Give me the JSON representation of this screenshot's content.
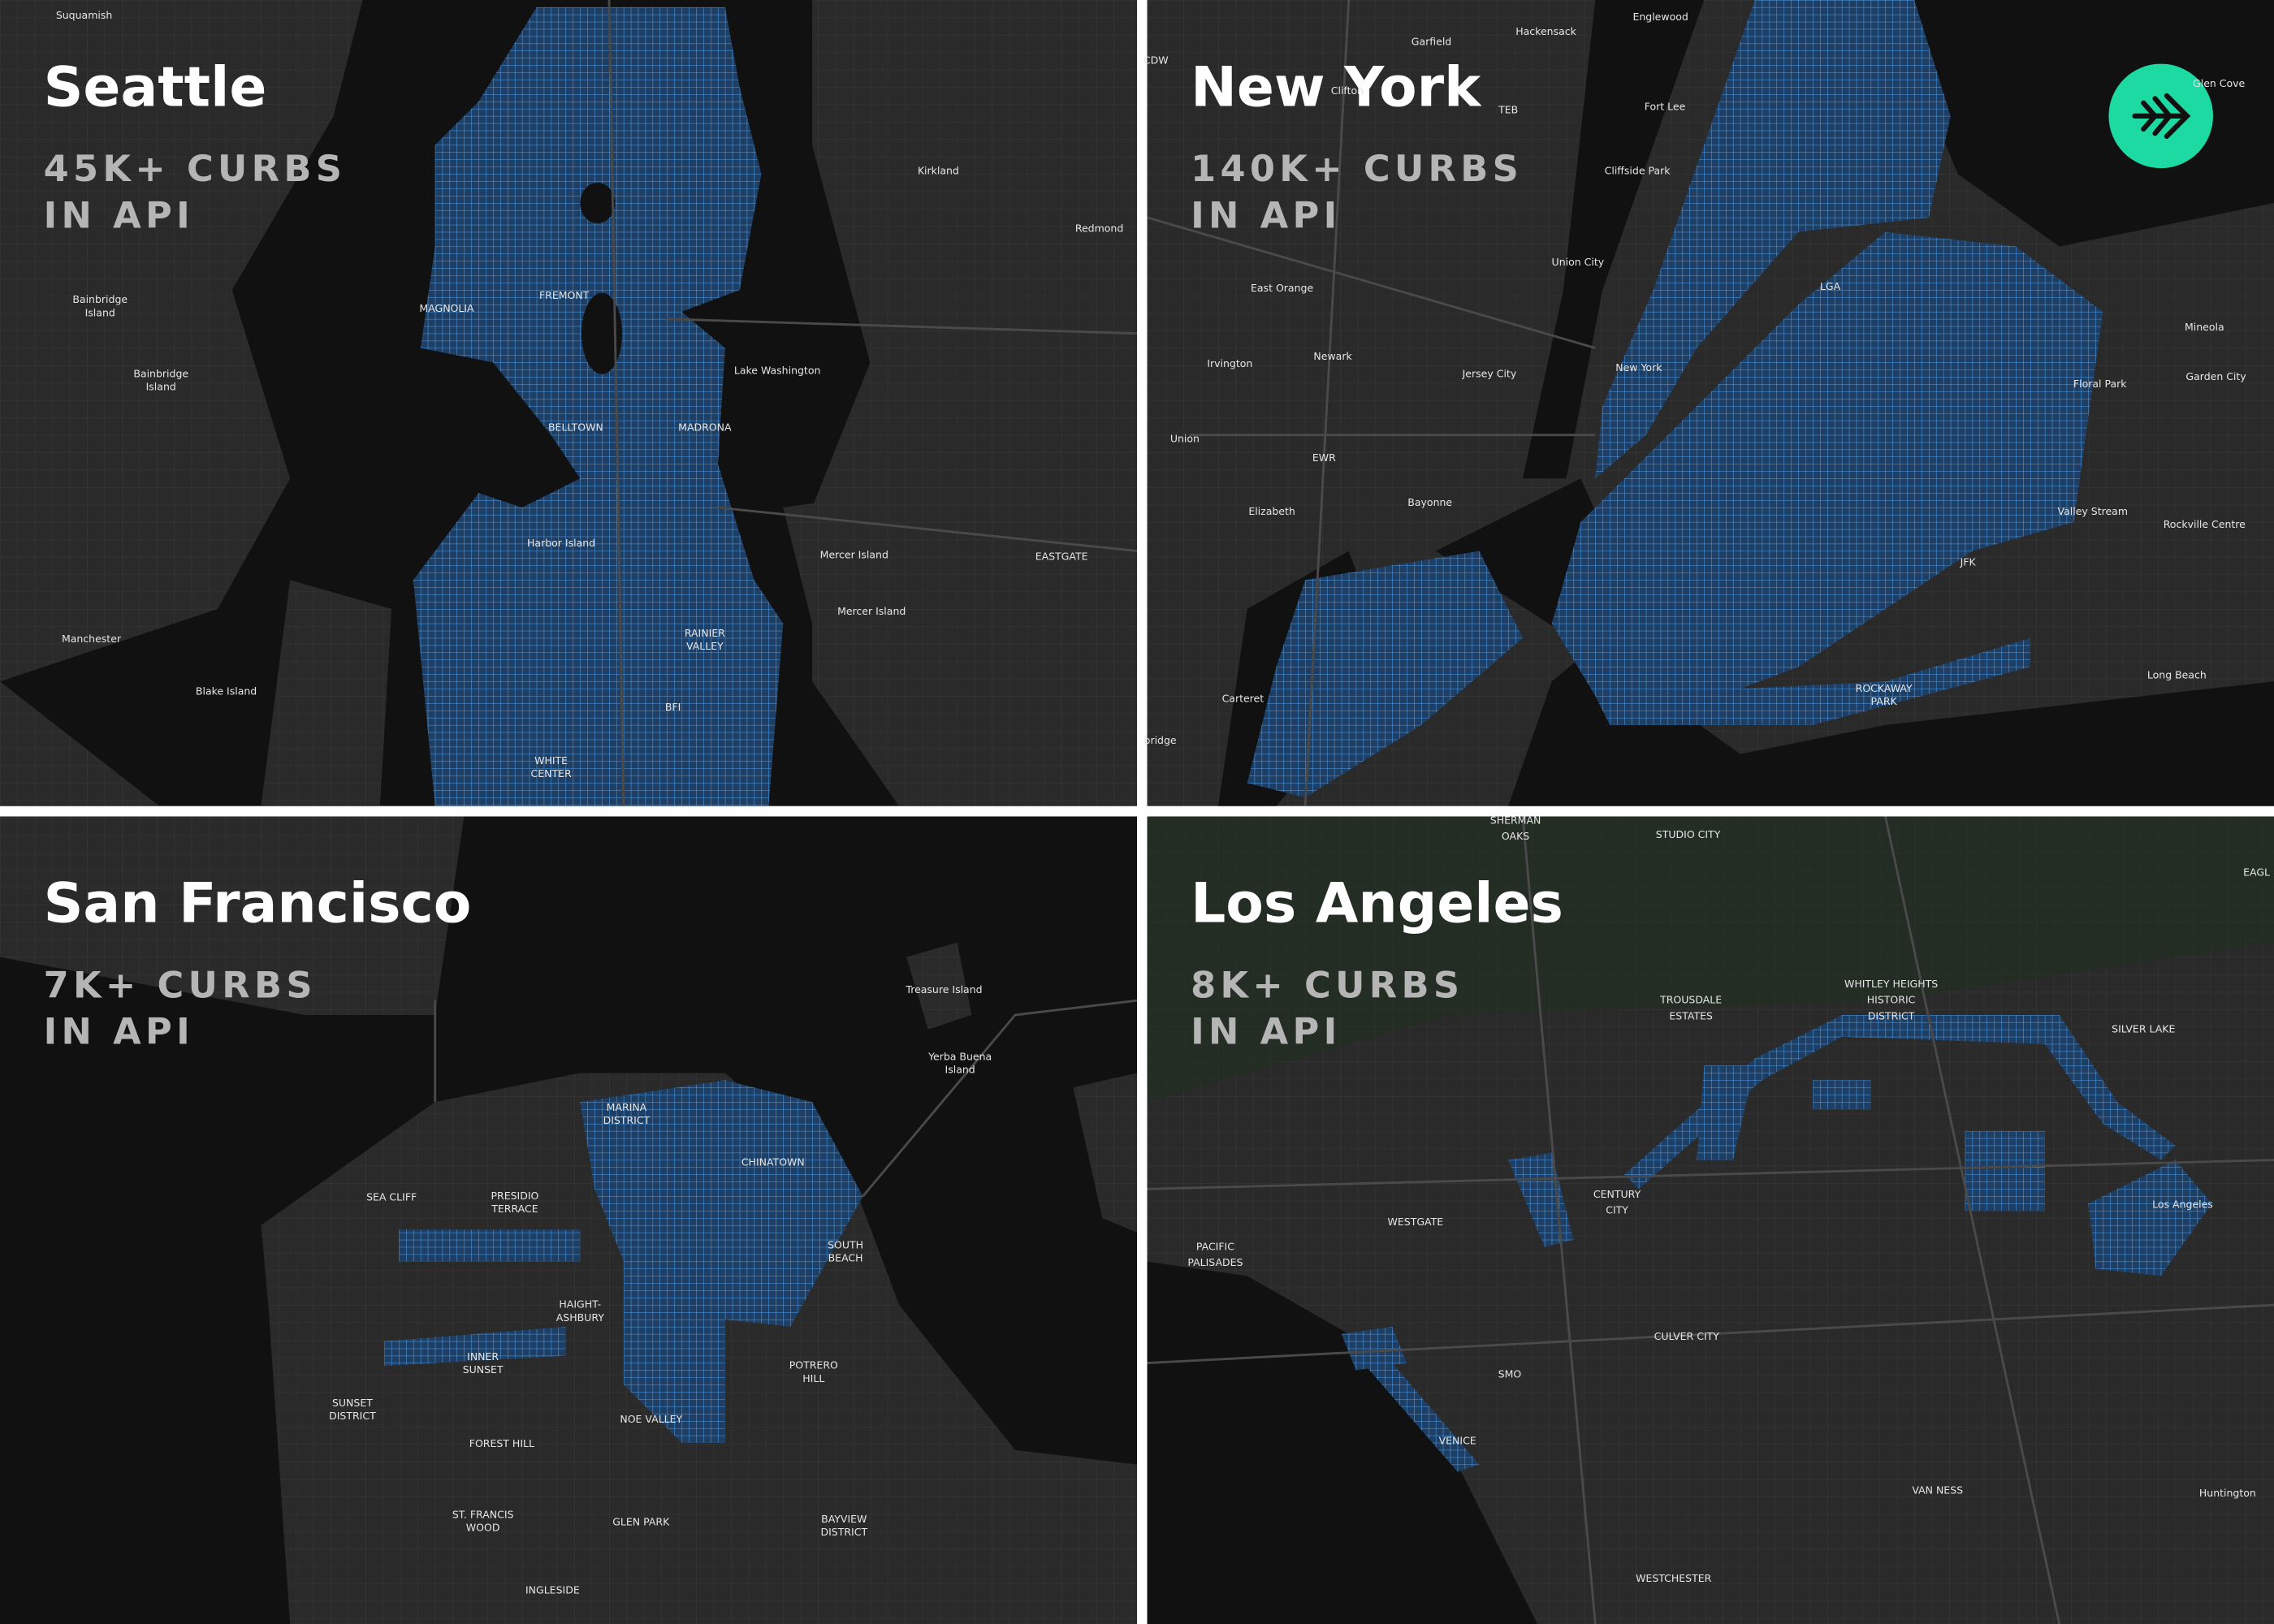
{
  "panels": [
    {
      "city": "Seattle",
      "stat": [
        "45K+ CURBS",
        "IN API"
      ],
      "places": [
        {
          "lines": [
            "Suquamish"
          ]
        },
        {
          "lines": [
            "Kirkland"
          ]
        },
        {
          "lines": [
            "Redmond"
          ]
        },
        {
          "lines": [
            "Bainbridge",
            "Island"
          ]
        },
        {
          "lines": [
            "Bainbridge",
            "Island"
          ]
        },
        {
          "lines": [
            "MAGNOLIA"
          ]
        },
        {
          "lines": [
            "FREMONT"
          ]
        },
        {
          "lines": [
            "Lake Washington"
          ]
        },
        {
          "lines": [
            "BELLTOWN"
          ]
        },
        {
          "lines": [
            "MADRONA"
          ]
        },
        {
          "lines": [
            "Harbor Island"
          ]
        },
        {
          "lines": [
            "Mercer Island"
          ]
        },
        {
          "lines": [
            "EASTGATE"
          ]
        },
        {
          "lines": [
            "Mercer Island"
          ]
        },
        {
          "lines": [
            "Manchester"
          ]
        },
        {
          "lines": [
            "RAINIER",
            "VALLEY"
          ]
        },
        {
          "lines": [
            "Blake Island"
          ]
        },
        {
          "lines": [
            "BFI"
          ]
        },
        {
          "lines": [
            "WHITE",
            "CENTER"
          ]
        }
      ]
    },
    {
      "city": "New York",
      "stat": [
        "140K+ CURBS",
        "IN API"
      ],
      "places": [
        {
          "lines": [
            "Garfield"
          ]
        },
        {
          "lines": [
            "Hackensack"
          ]
        },
        {
          "lines": [
            "Englewood"
          ]
        },
        {
          "lines": [
            "CDW"
          ]
        },
        {
          "lines": [
            "Clifton"
          ]
        },
        {
          "lines": [
            "TEB"
          ]
        },
        {
          "lines": [
            "Fort Lee"
          ]
        },
        {
          "lines": [
            "Glen Cove"
          ]
        },
        {
          "lines": [
            "Cliffside Park"
          ]
        },
        {
          "lines": [
            "Union City"
          ]
        },
        {
          "lines": [
            "East Orange"
          ]
        },
        {
          "lines": [
            "LGA"
          ]
        },
        {
          "lines": [
            "Mineola"
          ]
        },
        {
          "lines": [
            "Irvington"
          ]
        },
        {
          "lines": [
            "Newark"
          ]
        },
        {
          "lines": [
            "Jersey City"
          ]
        },
        {
          "lines": [
            "New York"
          ]
        },
        {
          "lines": [
            "Floral Park"
          ]
        },
        {
          "lines": [
            "Garden City"
          ]
        },
        {
          "lines": [
            "Union"
          ]
        },
        {
          "lines": [
            "EWR"
          ]
        },
        {
          "lines": [
            "Bayonne"
          ]
        },
        {
          "lines": [
            "Elizabeth"
          ]
        },
        {
          "lines": [
            "Valley Stream"
          ]
        },
        {
          "lines": [
            "Rockville Centre"
          ]
        },
        {
          "lines": [
            "JFK"
          ]
        },
        {
          "lines": [
            "Long Beach"
          ]
        },
        {
          "lines": [
            "Carteret"
          ]
        },
        {
          "lines": [
            "ROCKAWAY",
            "PARK"
          ]
        },
        {
          "lines": [
            "bridge"
          ]
        }
      ]
    },
    {
      "city": "San Francisco",
      "stat": [
        "7K+ CURBS",
        "IN API"
      ],
      "places": [
        {
          "lines": [
            "Treasure Island"
          ]
        },
        {
          "lines": [
            "Yerba Buena",
            "Island"
          ]
        },
        {
          "lines": [
            "MARINA",
            "DISTRICT"
          ]
        },
        {
          "lines": [
            "CHINATOWN"
          ]
        },
        {
          "lines": [
            "SEA CLIFF"
          ]
        },
        {
          "lines": [
            "PRESIDIO",
            "TERRACE"
          ]
        },
        {
          "lines": [
            "SOUTH",
            "BEACH"
          ]
        },
        {
          "lines": [
            "HAIGHT-",
            "ASHBURY"
          ]
        },
        {
          "lines": [
            "INNER",
            "SUNSET"
          ]
        },
        {
          "lines": [
            "POTRERO",
            "HILL"
          ]
        },
        {
          "lines": [
            "SUNSET",
            "DISTRICT"
          ]
        },
        {
          "lines": [
            "NOE VALLEY"
          ]
        },
        {
          "lines": [
            "FOREST HILL"
          ]
        },
        {
          "lines": [
            "ST. FRANCIS",
            "WOOD"
          ]
        },
        {
          "lines": [
            "GLEN PARK"
          ]
        },
        {
          "lines": [
            "BAYVIEW",
            "DISTRICT"
          ]
        },
        {
          "lines": [
            "INGLESIDE"
          ]
        }
      ]
    },
    {
      "city": "Los Angeles",
      "stat": [
        "8K+ CURBS",
        "IN API"
      ],
      "places": [
        {
          "lines": [
            "SHERMAN",
            "OAKS"
          ]
        },
        {
          "lines": [
            "STUDIO CITY"
          ]
        },
        {
          "lines": [
            "EAGL"
          ]
        },
        {
          "lines": [
            "TROUSDALE",
            "ESTATES"
          ]
        },
        {
          "lines": [
            "WHITLEY HEIGHTS",
            "HISTORIC",
            "DISTRICT"
          ]
        },
        {
          "lines": [
            "SILVER LAKE"
          ]
        },
        {
          "lines": [
            "CENTURY",
            "CITY"
          ]
        },
        {
          "lines": [
            "Los Angeles"
          ]
        },
        {
          "lines": [
            "WESTGATE"
          ]
        },
        {
          "lines": [
            "PACIFIC",
            "PALISADES"
          ]
        },
        {
          "lines": [
            "CULVER CITY"
          ]
        },
        {
          "lines": [
            "SMO"
          ]
        },
        {
          "lines": [
            "VENICE"
          ]
        },
        {
          "lines": [
            "VAN NESS"
          ]
        },
        {
          "lines": [
            "Huntington"
          ]
        },
        {
          "lines": [
            "WESTCHESTER"
          ]
        }
      ]
    }
  ]
}
